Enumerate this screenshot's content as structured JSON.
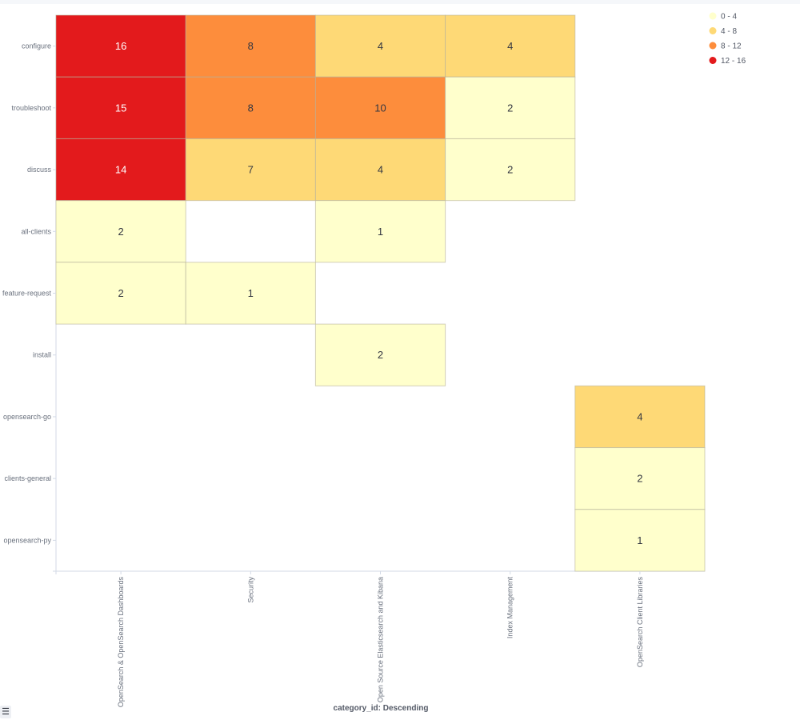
{
  "chart_data": {
    "type": "heatmap",
    "x_categories": [
      "OpenSearch & OpenSearch Dashboards",
      "Security",
      "Open Source Elasticsearch and Kibana",
      "Index Management",
      "OpenSearch Client Libraries"
    ],
    "y_categories": [
      "configure",
      "troubleshoot",
      "discuss",
      "all-clients",
      "feature-request",
      "install",
      "opensearch-go",
      "clients-general",
      "opensearch-py"
    ],
    "cells": [
      {
        "x": "OpenSearch & OpenSearch Dashboards",
        "y": "configure",
        "value": 16
      },
      {
        "x": "Security",
        "y": "configure",
        "value": 8
      },
      {
        "x": "Open Source Elasticsearch and Kibana",
        "y": "configure",
        "value": 4
      },
      {
        "x": "Index Management",
        "y": "configure",
        "value": 4
      },
      {
        "x": "OpenSearch & OpenSearch Dashboards",
        "y": "troubleshoot",
        "value": 15
      },
      {
        "x": "Security",
        "y": "troubleshoot",
        "value": 8
      },
      {
        "x": "Open Source Elasticsearch and Kibana",
        "y": "troubleshoot",
        "value": 10
      },
      {
        "x": "Index Management",
        "y": "troubleshoot",
        "value": 2
      },
      {
        "x": "OpenSearch & OpenSearch Dashboards",
        "y": "discuss",
        "value": 14
      },
      {
        "x": "Security",
        "y": "discuss",
        "value": 7
      },
      {
        "x": "Open Source Elasticsearch and Kibana",
        "y": "discuss",
        "value": 4
      },
      {
        "x": "Index Management",
        "y": "discuss",
        "value": 2
      },
      {
        "x": "OpenSearch & OpenSearch Dashboards",
        "y": "all-clients",
        "value": 2
      },
      {
        "x": "Open Source Elasticsearch and Kibana",
        "y": "all-clients",
        "value": 1
      },
      {
        "x": "OpenSearch & OpenSearch Dashboards",
        "y": "feature-request",
        "value": 2
      },
      {
        "x": "Security",
        "y": "feature-request",
        "value": 1
      },
      {
        "x": "Open Source Elasticsearch and Kibana",
        "y": "install",
        "value": 2
      },
      {
        "x": "OpenSearch Client Libraries",
        "y": "opensearch-go",
        "value": 4
      },
      {
        "x": "OpenSearch Client Libraries",
        "y": "clients-general",
        "value": 2
      },
      {
        "x": "OpenSearch Client Libraries",
        "y": "opensearch-py",
        "value": 1
      }
    ],
    "xlabel": "category_id: Descending",
    "ylabel": "",
    "legend": {
      "placement": "top-right",
      "ranges": [
        {
          "label": "0 - 4",
          "min": 0,
          "max": 4,
          "color": "#ffffcc"
        },
        {
          "label": "4 - 8",
          "min": 4,
          "max": 8,
          "color": "#fed976"
        },
        {
          "label": "8 - 12",
          "min": 8,
          "max": 12,
          "color": "#fd8d3c"
        },
        {
          "label": "12 - 16",
          "min": 12,
          "max": 16,
          "color": "#e31a1c"
        }
      ]
    },
    "grid": false
  },
  "ui": {
    "legend_toggle_icon": "list-icon"
  }
}
